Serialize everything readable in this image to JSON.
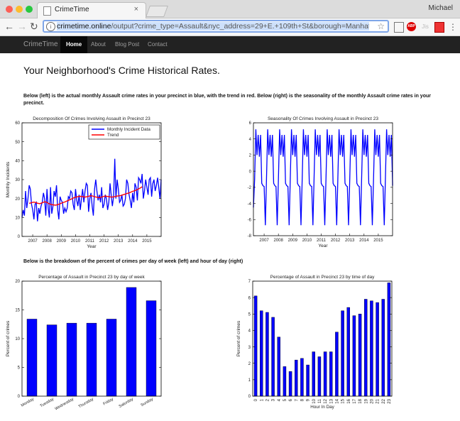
{
  "browser": {
    "tab_title": "CrimeTime",
    "tab_close": "×",
    "user": "Michael",
    "url_host": "crimetime.online",
    "url_path": "/output?crime_type=Assault&nyc_address=29+E.+109th+St&borough=Manhattan&t",
    "ext_labels": [
      "ABP",
      "Jis"
    ],
    "icons": [
      "back-icon",
      "forward-icon",
      "reload-icon",
      "info-icon",
      "star-icon",
      "cast-icon",
      "adblock-icon",
      "extension-icon",
      "calendar-icon",
      "menu-icon"
    ]
  },
  "nav": {
    "brand": "CrimeTime",
    "items": [
      "Home",
      "About",
      "Blog Post",
      "Contact"
    ],
    "active": "Home"
  },
  "page": {
    "heading": "Your Neighborhood's Crime Historical Rates.",
    "para1": "Below (left) is the actual monthly Assault crime rates in your precinct in blue, with the trend in red. Below (right) is the seasonality of the monthly Assault crime rates in your precinct.",
    "para2": "Below is the breakdown of the percent of crimes per day of week (left) and hour of day (right)"
  },
  "chart_data": [
    {
      "type": "line",
      "title": "Decomposition Of Crimes Involving Assault in Precinct 23",
      "xlabel": "Year",
      "ylabel": "Monthly Incidents",
      "xlim": [
        2006.25,
        2016
      ],
      "ylim": [
        0,
        60
      ],
      "xticks": [
        "2007",
        "2008",
        "2009",
        "2010",
        "2011",
        "2012",
        "2013",
        "2014",
        "2015"
      ],
      "yticks": [
        0,
        10,
        20,
        30,
        40,
        50,
        60
      ],
      "legend": "top-right",
      "series": [
        {
          "name": "Monthly Incident Data",
          "color": "#0000ff",
          "x_start": 2006.25,
          "x_step": 0.08333,
          "values": [
            10,
            14,
            11,
            24,
            15,
            20,
            27,
            25,
            17,
            14,
            9,
            17,
            18,
            8,
            15,
            12,
            16,
            18,
            23,
            20,
            11,
            25,
            15,
            10,
            26,
            12,
            16,
            24,
            21,
            27,
            14,
            9,
            21,
            19,
            18,
            12,
            15,
            13,
            15,
            21,
            20,
            24,
            23,
            17,
            14,
            25,
            19,
            16,
            22,
            14,
            20,
            25,
            18,
            24,
            28,
            27,
            13,
            20,
            23,
            16,
            11,
            25,
            30,
            24,
            19,
            22,
            18,
            26,
            15,
            17,
            22,
            20,
            14,
            18,
            28,
            22,
            16,
            21,
            41,
            20,
            30,
            25,
            18,
            19,
            22,
            16,
            17,
            20,
            30,
            28,
            22,
            19,
            15,
            23,
            18,
            28,
            26,
            19,
            31,
            30,
            28,
            33,
            20,
            24,
            30,
            26,
            22,
            30,
            31,
            21,
            28,
            30,
            24,
            27,
            31,
            26,
            20,
            30
          ]
        },
        {
          "name": "Trend",
          "color": "#ff0000",
          "x_start": 2006.75,
          "x_step": 0.08333,
          "values": [
            17.5,
            17.6,
            17.8,
            18,
            18.1,
            18,
            17.8,
            17.5,
            17.4,
            17.3,
            17.5,
            17.8,
            18,
            18.3,
            18.2,
            17.9,
            17.5,
            17.2,
            17,
            16.8,
            16.7,
            16.6,
            16.5,
            16.6,
            16.8,
            17,
            17.2,
            17.5,
            17.8,
            18,
            18.2,
            18.5,
            18.8,
            19,
            19.3,
            19.6,
            19.9,
            20.2,
            20.5,
            20.7,
            20.9,
            21,
            21.1,
            21.2,
            21.1,
            21,
            20.9,
            20.8,
            20.9,
            21,
            21.2,
            21.4,
            21.5,
            21.4,
            21.2,
            21,
            20.8,
            20.7,
            20.6,
            20.5,
            20.6,
            20.8,
            21,
            21.2,
            21.3,
            21.2,
            21.1,
            21,
            20.9,
            20.8,
            20.8,
            20.9,
            21,
            21.2,
            21.3,
            21.4,
            21.5,
            21.6,
            21.8,
            22,
            22.2,
            22.4,
            22.6,
            22.8,
            23,
            23.2,
            23.5,
            23.8,
            24,
            24.2,
            24.5,
            24.8,
            25.1,
            25.4,
            25.8,
            26.2
          ]
        }
      ]
    },
    {
      "type": "line",
      "title": "Seasonality Of Crimes Involving Assault in Precinct 23",
      "xlabel": "Year",
      "ylabel": "",
      "xlim": [
        2006.25,
        2016
      ],
      "ylim": [
        -8,
        6
      ],
      "xticks": [
        "2007",
        "2008",
        "2009",
        "2010",
        "2011",
        "2012",
        "2013",
        "2014",
        "2015"
      ],
      "yticks": [
        -8,
        -6,
        -4,
        -2,
        0,
        2,
        4,
        6
      ],
      "series": [
        {
          "name": "",
          "color": "#0000ff",
          "x_start": 2006.25,
          "x_step": 0.08333,
          "values": [
            -4.5,
            -1,
            5.2,
            2,
            4.5,
            1.8,
            4.5,
            -1.5,
            -1.8,
            -1.9,
            -6.7,
            -1,
            5.2,
            2,
            4.5,
            1.8,
            4.5,
            -1.5,
            -1.8,
            -1.9,
            -6.7,
            -1,
            5.2,
            2,
            4.5,
            1.8,
            4.5,
            -1.5,
            -1.8,
            -1.9,
            -6.7,
            -1,
            5.2,
            2,
            4.5,
            1.8,
            4.5,
            -1.5,
            -1.8,
            -1.9,
            -6.7,
            -1,
            5.2,
            2,
            4.5,
            1.8,
            4.5,
            -1.5,
            -1.8,
            -1.9,
            -6.7,
            -1,
            5.2,
            2,
            4.5,
            1.8,
            4.5,
            -1.5,
            -1.8,
            -1.9,
            -6.7,
            -1,
            5.2,
            2,
            4.5,
            1.8,
            4.5,
            -1.5,
            -1.8,
            -1.9,
            -6.7,
            -1,
            5.2,
            2,
            4.5,
            1.8,
            4.5,
            -1.5,
            -1.8,
            -1.9,
            -6.7,
            -1,
            5.2,
            2,
            4.5,
            1.8,
            4.5,
            -1.5,
            -1.8,
            -1.9,
            -6.7,
            -1,
            5.2,
            2,
            4.5,
            1.8,
            4.5,
            -1.5,
            -1.8,
            -1.9,
            -6.7,
            -1,
            5.2,
            2,
            4.5,
            1.8,
            4.5,
            -1.5,
            -1.8,
            -1.9,
            -6.7,
            -1,
            5.2,
            2,
            4.5,
            1.8,
            4.5,
            -1.5,
            -1.8
          ]
        }
      ]
    },
    {
      "type": "bar",
      "title": "Percentage of Assault in Precinct 23 by day of week",
      "xlabel": "",
      "ylabel": "Percent of crimes",
      "ylim": [
        0,
        20
      ],
      "yticks": [
        0,
        5,
        10,
        15,
        20
      ],
      "color": "#0000ff",
      "categories": [
        "Monday",
        "Tuesday",
        "Wednesday",
        "Thursday",
        "Friday",
        "Saturday",
        "Sunday"
      ],
      "values": [
        13.4,
        12.4,
        12.7,
        12.7,
        13.4,
        18.9,
        16.6
      ]
    },
    {
      "type": "bar",
      "title": "Percentage of Assault in Precinct 23 by time of day",
      "xlabel": "Hour In Day",
      "ylabel": "Percent of crimes",
      "ylim": [
        0,
        7
      ],
      "yticks": [
        0,
        1,
        2,
        3,
        4,
        5,
        6,
        7
      ],
      "color": "#0000ff",
      "categories": [
        "0",
        "1",
        "2",
        "3",
        "4",
        "5",
        "6",
        "7",
        "8",
        "9",
        "10",
        "11",
        "12",
        "13",
        "14",
        "15",
        "16",
        "17",
        "18",
        "19",
        "20",
        "21",
        "22",
        "23"
      ],
      "values": [
        6.1,
        5.2,
        5.1,
        4.8,
        3.6,
        1.8,
        1.5,
        2.2,
        2.3,
        1.9,
        2.7,
        2.4,
        2.7,
        2.7,
        3.9,
        5.2,
        5.4,
        4.9,
        5.0,
        5.9,
        5.8,
        5.7,
        5.9,
        6.9
      ]
    }
  ]
}
